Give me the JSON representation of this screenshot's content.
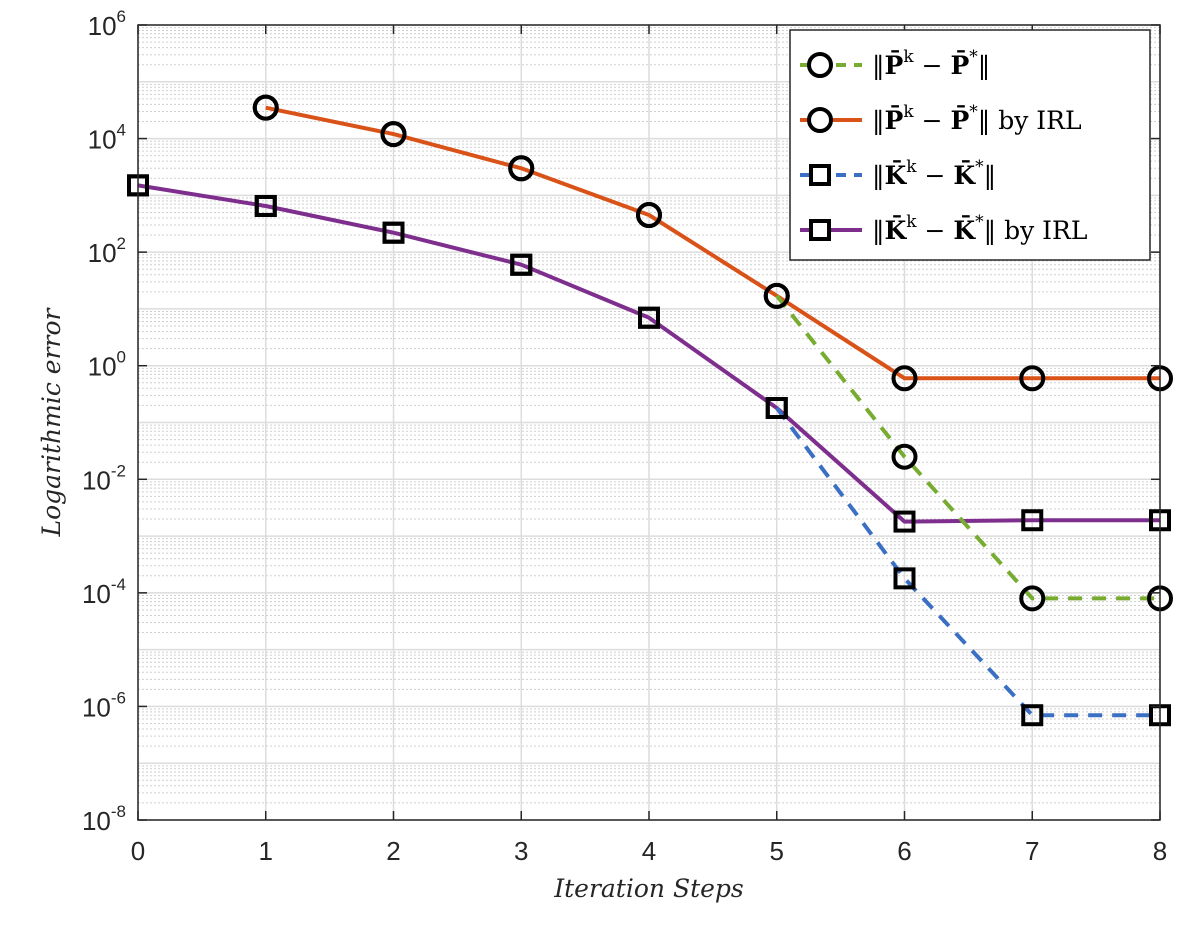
{
  "chart_data": {
    "type": "line",
    "xlabel": "Iteration Steps",
    "ylabel": "Logarithmic error",
    "x_ticks": [
      "0",
      "1",
      "2",
      "3",
      "4",
      "5",
      "6",
      "7",
      "8"
    ],
    "y_ticks": [
      {
        "base": "10",
        "exp": "-8"
      },
      {
        "base": "10",
        "exp": "-6"
      },
      {
        "base": "10",
        "exp": "-4"
      },
      {
        "base": "10",
        "exp": "-2"
      },
      {
        "base": "10",
        "exp": "0"
      },
      {
        "base": "10",
        "exp": "2"
      },
      {
        "base": "10",
        "exp": "4"
      },
      {
        "base": "10",
        "exp": "6"
      }
    ],
    "xlim": [
      0,
      8
    ],
    "ylim": [
      1e-08,
      1000000.0
    ],
    "yscale": "log",
    "grid": true,
    "minor_grid": true,
    "legend_position": "top-right",
    "series": [
      {
        "name": "‖P̄^k − P̄*‖",
        "legend": {
          "pre": "‖",
          "sym": "P̄",
          "sup1": "k",
          "mid": " − ",
          "sym2": "P̄",
          "sup2": "*",
          "post": "‖",
          "suffix": ""
        },
        "color": "#77AC30",
        "dash": true,
        "marker": "circle",
        "x": [
          1,
          2,
          3,
          4,
          5,
          6,
          7,
          8
        ],
        "y": [
          35000,
          12000,
          3000,
          450,
          17,
          0.025,
          8e-05,
          8e-05
        ]
      },
      {
        "name": "‖P̄^k − P̄*‖ by IRL",
        "legend": {
          "pre": "‖",
          "sym": "P̄",
          "sup1": "k",
          "mid": " − ",
          "sym2": "P̄",
          "sup2": "*",
          "post": "‖",
          "suffix": " by IRL"
        },
        "color": "#D95319",
        "dash": false,
        "marker": "circle",
        "x": [
          1,
          2,
          3,
          4,
          5,
          6,
          7,
          8
        ],
        "y": [
          35000,
          12000,
          3000,
          450,
          17,
          0.6,
          0.6,
          0.6
        ]
      },
      {
        "name": "‖K̄^k − K̄*‖",
        "legend": {
          "pre": "‖",
          "sym": "K̄",
          "sup1": "k",
          "mid": " − ",
          "sym2": "K̄",
          "sup2": "*",
          "post": "‖",
          "suffix": ""
        },
        "color": "#3A6FC4",
        "dash": true,
        "marker": "square",
        "x": [
          0,
          1,
          2,
          3,
          4,
          5,
          6,
          7,
          8
        ],
        "y": [
          1500,
          650,
          220,
          60,
          7,
          0.18,
          0.00018,
          7e-07,
          7e-07
        ]
      },
      {
        "name": "‖K̄^k − K̄*‖ by IRL",
        "legend": {
          "pre": "‖",
          "sym": "K̄",
          "sup1": "k",
          "mid": " − ",
          "sym2": "K̄",
          "sup2": "*",
          "post": "‖",
          "suffix": " by IRL"
        },
        "color": "#7E2F8E",
        "dash": false,
        "marker": "square",
        "x": [
          0,
          1,
          2,
          3,
          4,
          5,
          6,
          7,
          8
        ],
        "y": [
          1500,
          650,
          220,
          60,
          7,
          0.18,
          0.0018,
          0.0019,
          0.0019
        ]
      }
    ]
  }
}
